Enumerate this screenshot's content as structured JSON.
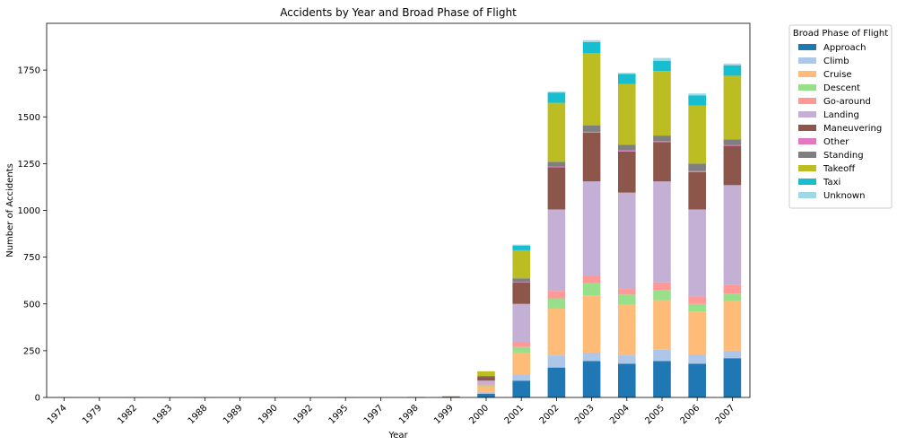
{
  "chart_data": {
    "type": "bar",
    "stacked": true,
    "title": "Accidents by Year and Broad Phase of Flight",
    "xlabel": "Year",
    "ylabel": "Number of Accidents",
    "ylim": [
      0,
      2000
    ],
    "yticks": [
      0,
      250,
      500,
      750,
      1000,
      1250,
      1500,
      1750
    ],
    "grid": false,
    "legend": {
      "title": "Broad Phase of Flight",
      "placement": "outside-top-right"
    },
    "categories": [
      "1974",
      "1979",
      "1982",
      "1983",
      "1988",
      "1989",
      "1990",
      "1992",
      "1995",
      "1997",
      "1998",
      "1999",
      "2000",
      "2001",
      "2002",
      "2003",
      "2004",
      "2005",
      "2006",
      "2007"
    ],
    "series": [
      {
        "name": "Approach",
        "color": "#1f77b4",
        "values": [
          0,
          0,
          0,
          0,
          0,
          0,
          0,
          0,
          0,
          0,
          2,
          2,
          20,
          90,
          160,
          195,
          180,
          195,
          180,
          210
        ]
      },
      {
        "name": "Climb",
        "color": "#aec7e8",
        "values": [
          0,
          0,
          0,
          0,
          0,
          0,
          0,
          0,
          0,
          0,
          0,
          0,
          10,
          30,
          65,
          45,
          45,
          60,
          50,
          40
        ]
      },
      {
        "name": "Cruise",
        "color": "#ffbb78",
        "values": [
          1,
          0,
          1,
          1,
          1,
          0,
          0,
          0,
          1,
          0,
          0,
          1,
          30,
          120,
          250,
          305,
          270,
          265,
          230,
          265
        ]
      },
      {
        "name": "Descent",
        "color": "#98df8a",
        "values": [
          0,
          0,
          0,
          0,
          0,
          0,
          0,
          0,
          0,
          0,
          0,
          0,
          5,
          30,
          55,
          65,
          55,
          55,
          40,
          40
        ]
      },
      {
        "name": "Go-around",
        "color": "#ff9896",
        "values": [
          0,
          0,
          0,
          0,
          0,
          0,
          0,
          0,
          0,
          0,
          0,
          0,
          5,
          25,
          40,
          40,
          30,
          40,
          40,
          45
        ]
      },
      {
        "name": "Landing",
        "color": "#c5b0d5",
        "values": [
          0,
          0,
          0,
          0,
          0,
          0,
          0,
          0,
          0,
          0,
          0,
          1,
          20,
          205,
          435,
          505,
          515,
          540,
          465,
          535
        ]
      },
      {
        "name": "Maneuvering",
        "color": "#8c564b",
        "values": [
          0,
          0,
          0,
          0,
          0,
          0,
          0,
          0,
          0,
          0,
          0,
          1,
          20,
          115,
          225,
          260,
          220,
          210,
          200,
          210
        ]
      },
      {
        "name": "Other",
        "color": "#e377c2",
        "values": [
          0,
          0,
          0,
          0,
          0,
          0,
          0,
          0,
          0,
          0,
          0,
          0,
          0,
          2,
          5,
          5,
          5,
          5,
          5,
          5
        ]
      },
      {
        "name": "Standing",
        "color": "#7f7f7f",
        "values": [
          0,
          0,
          0,
          0,
          0,
          0,
          0,
          0,
          0,
          0,
          0,
          1,
          5,
          20,
          25,
          35,
          30,
          30,
          40,
          30
        ]
      },
      {
        "name": "Takeoff",
        "color": "#bcbd22",
        "values": [
          0,
          0,
          0,
          0,
          0,
          0,
          0,
          0,
          0,
          0,
          0,
          0,
          25,
          150,
          315,
          385,
          325,
          345,
          310,
          340
        ]
      },
      {
        "name": "Taxi",
        "color": "#17becf",
        "values": [
          0,
          0,
          0,
          0,
          0,
          0,
          0,
          0,
          0,
          0,
          0,
          0,
          0,
          25,
          55,
          60,
          55,
          55,
          55,
          55
        ]
      },
      {
        "name": "Unknown",
        "color": "#9edae5",
        "values": [
          0,
          0,
          0,
          0,
          0,
          0,
          0,
          0,
          0,
          0,
          0,
          0,
          0,
          5,
          5,
          10,
          5,
          15,
          10,
          10
        ]
      }
    ]
  }
}
